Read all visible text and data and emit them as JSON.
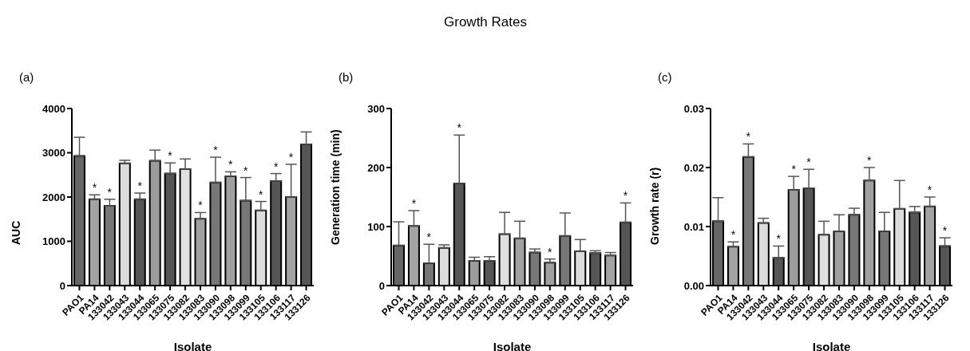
{
  "chart_data": [
    {
      "type": "bar",
      "subtitle": "(a)",
      "xlabel": "Isolate",
      "ylabel": "AUC",
      "categories": [
        "PAO1",
        "PA14",
        "133042",
        "133043",
        "133044",
        "133065",
        "133075",
        "133082",
        "133083",
        "133090",
        "133098",
        "133099",
        "133105",
        "133106",
        "133117",
        "133126"
      ],
      "values": [
        2930,
        1950,
        1800,
        2760,
        1950,
        2820,
        2530,
        2630,
        1510,
        2330,
        2470,
        1920,
        1700,
        2360,
        2000,
        3190
      ],
      "errors": [
        [
          2930,
          3350
        ],
        [
          1950,
          2050
        ],
        [
          1800,
          1950
        ],
        [
          2760,
          2830
        ],
        [
          1950,
          2090
        ],
        [
          2820,
          3060
        ],
        [
          2530,
          2770
        ],
        [
          2630,
          2860
        ],
        [
          1510,
          1650
        ],
        [
          2330,
          2900
        ],
        [
          2470,
          2570
        ],
        [
          1920,
          2440
        ],
        [
          1700,
          1900
        ],
        [
          2360,
          2530
        ],
        [
          2000,
          2740
        ],
        [
          3190,
          3470
        ]
      ],
      "colors": [
        "#666666",
        "#a3a3a3",
        "#777777",
        "#dcdcdc",
        "#555555",
        "#9c9c9c",
        "#555555",
        "#e0e0e0",
        "#a0a0a0",
        "#777777",
        "#a0a0a0",
        "#777777",
        "#dcdcdc",
        "#555555",
        "#a3a3a3",
        "#555555"
      ],
      "ylim": [
        0,
        4000
      ],
      "yticks": [
        0,
        1000,
        2000,
        3000,
        4000
      ],
      "grid": false,
      "legend": false,
      "annotations": [
        {
          "text": "*",
          "x": "PA14",
          "y": 2050
        },
        {
          "text": "*",
          "x": "133042",
          "y": 1950
        },
        {
          "text": "*",
          "x": "133044",
          "y": 2090
        },
        {
          "text": "*",
          "x": "133075",
          "y": 2770
        },
        {
          "text": "*",
          "x": "133083",
          "y": 1650
        },
        {
          "text": "*",
          "x": "133090",
          "y": 2900
        },
        {
          "text": "*",
          "x": "133098",
          "y": 2570
        },
        {
          "text": "*",
          "x": "133099",
          "y": 2440
        },
        {
          "text": "*",
          "x": "133105",
          "y": 1900
        },
        {
          "text": "*",
          "x": "133106",
          "y": 2530
        },
        {
          "text": "*",
          "x": "133117",
          "y": 2740
        }
      ]
    },
    {
      "type": "bar",
      "title": "Growth Rates",
      "subtitle": "(b)",
      "xlabel": "Isolate",
      "ylabel": "Generation time (min)",
      "categories": [
        "PAO1",
        "PA14",
        "133042",
        "133043",
        "133044",
        "133065",
        "133075",
        "133082",
        "133083",
        "133090",
        "133098",
        "133099",
        "133105",
        "133106",
        "133117",
        "133126"
      ],
      "values": [
        68,
        101,
        38,
        64,
        173,
        42,
        42,
        87,
        80,
        56,
        39,
        84,
        58,
        55,
        51,
        107
      ],
      "errors": [
        [
          68,
          108
        ],
        [
          101,
          127
        ],
        [
          38,
          70
        ],
        [
          64,
          69
        ],
        [
          173,
          255
        ],
        [
          42,
          48
        ],
        [
          42,
          49
        ],
        [
          87,
          124
        ],
        [
          80,
          109
        ],
        [
          56,
          62
        ],
        [
          39,
          45
        ],
        [
          84,
          123
        ],
        [
          58,
          78
        ],
        [
          55,
          59
        ],
        [
          51,
          56
        ],
        [
          107,
          140
        ]
      ],
      "colors": [
        "#666666",
        "#a3a3a3",
        "#777777",
        "#dcdcdc",
        "#555555",
        "#9c9c9c",
        "#555555",
        "#e0e0e0",
        "#a0a0a0",
        "#777777",
        "#a0a0a0",
        "#777777",
        "#dcdcdc",
        "#555555",
        "#a3a3a3",
        "#555555"
      ],
      "ylim": [
        0,
        300
      ],
      "yticks": [
        0,
        100,
        200,
        300
      ],
      "grid": false,
      "legend": false,
      "annotations": [
        {
          "text": "*",
          "x": "PA14",
          "y": 127
        },
        {
          "text": "*",
          "x": "133042",
          "y": 70
        },
        {
          "text": "*",
          "x": "133044",
          "y": 255
        },
        {
          "text": "*",
          "x": "133098",
          "y": 45
        },
        {
          "text": "*",
          "x": "133126",
          "y": 140
        }
      ]
    },
    {
      "type": "bar",
      "subtitle": "(c)",
      "xlabel": "Isolate",
      "ylabel": "Growth rate (r)",
      "categories": [
        "PAO1",
        "PA14",
        "133042",
        "133043",
        "133044",
        "133065",
        "133075",
        "133082",
        "133083",
        "133090",
        "133098",
        "133099",
        "133105",
        "133106",
        "133117",
        "133126"
      ],
      "values": [
        0.0109,
        0.0066,
        0.0218,
        0.0106,
        0.0047,
        0.0162,
        0.0165,
        0.0086,
        0.0092,
        0.012,
        0.0178,
        0.0092,
        0.013,
        0.0124,
        0.0134,
        0.0067
      ],
      "errors": [
        [
          0.0109,
          0.0149
        ],
        [
          0.0066,
          0.0074
        ],
        [
          0.0218,
          0.024
        ],
        [
          0.0106,
          0.0114
        ],
        [
          0.0047,
          0.0067
        ],
        [
          0.0162,
          0.0185
        ],
        [
          0.0165,
          0.0197
        ],
        [
          0.0086,
          0.0109
        ],
        [
          0.0092,
          0.012
        ],
        [
          0.012,
          0.0131
        ],
        [
          0.0178,
          0.02
        ],
        [
          0.0092,
          0.0124
        ],
        [
          0.013,
          0.0178
        ],
        [
          0.0124,
          0.0134
        ],
        [
          0.0134,
          0.015
        ],
        [
          0.0067,
          0.0081
        ]
      ],
      "colors": [
        "#666666",
        "#a3a3a3",
        "#777777",
        "#dcdcdc",
        "#555555",
        "#9c9c9c",
        "#555555",
        "#e0e0e0",
        "#a0a0a0",
        "#777777",
        "#a0a0a0",
        "#777777",
        "#dcdcdc",
        "#555555",
        "#a3a3a3",
        "#555555"
      ],
      "ylim": [
        0,
        0.03
      ],
      "yticks": [
        {
          "value": 0,
          "label": "0.00"
        },
        {
          "value": 0.01,
          "label": "0.01"
        },
        {
          "value": 0.02,
          "label": "0.02"
        },
        {
          "value": 0.03,
          "label": "0.03"
        }
      ],
      "grid": false,
      "legend": false,
      "annotations": [
        {
          "text": "*",
          "x": "PA14",
          "y": 0.0074
        },
        {
          "text": "*",
          "x": "133042",
          "y": 0.024
        },
        {
          "text": "*",
          "x": "133044",
          "y": 0.0067
        },
        {
          "text": "*",
          "x": "133065",
          "y": 0.0185
        },
        {
          "text": "*",
          "x": "133075",
          "y": 0.0197
        },
        {
          "text": "*",
          "x": "133098",
          "y": 0.02
        },
        {
          "text": "*",
          "x": "133117",
          "y": 0.015
        },
        {
          "text": "*",
          "x": "133126",
          "y": 0.0081
        }
      ]
    }
  ]
}
